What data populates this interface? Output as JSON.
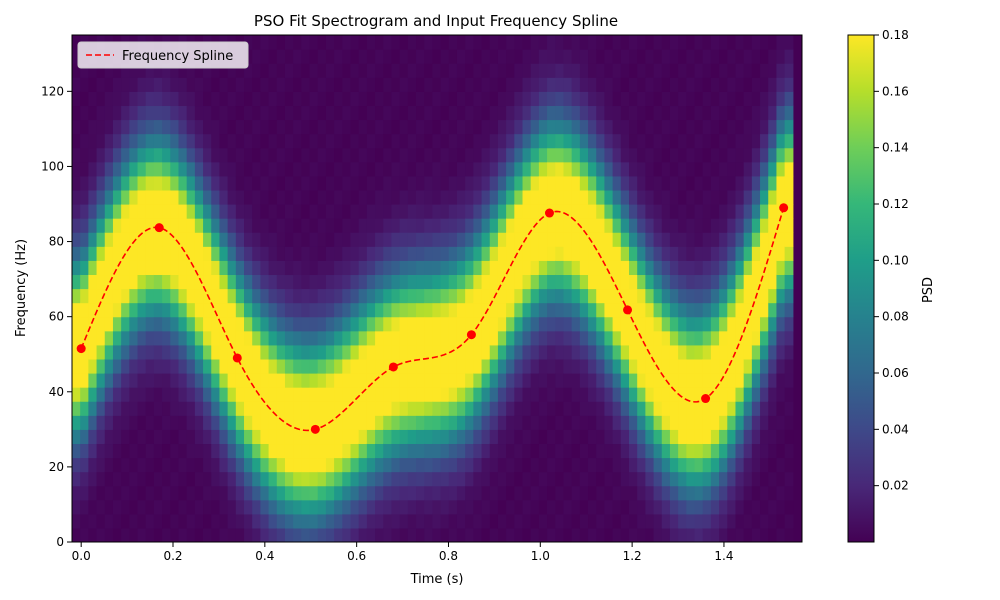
{
  "chart_data": {
    "type": "heatmap",
    "title": "PSO Fit Spectrogram and Input Frequency Spline",
    "xlabel": "Time (s)",
    "ylabel": "Frequency (Hz)",
    "xlim": [
      -0.02,
      1.57
    ],
    "ylim": [
      0,
      135
    ],
    "x_ticks": [
      0.0,
      0.2,
      0.4,
      0.6,
      0.8,
      1.0,
      1.2,
      1.4
    ],
    "x_tick_labels": [
      "0.0",
      "0.2",
      "0.4",
      "0.6",
      "0.8",
      "1.0",
      "1.2",
      "1.4"
    ],
    "y_ticks": [
      0,
      20,
      40,
      60,
      80,
      100,
      120
    ],
    "y_tick_labels": [
      "0",
      "20",
      "40",
      "60",
      "80",
      "100",
      "120"
    ],
    "legend": {
      "position": "top-left",
      "entries": [
        "Frequency Spline"
      ]
    },
    "colorbar": {
      "label": "PSD",
      "colormap": "viridis",
      "vmin": 0.0,
      "vmax": 0.18,
      "ticks": [
        0.02,
        0.04,
        0.06,
        0.08,
        0.1,
        0.12,
        0.14,
        0.16,
        0.18
      ],
      "tick_labels": [
        "0.02",
        "0.04",
        "0.06",
        "0.08",
        "0.10",
        "0.12",
        "0.14",
        "0.16",
        "0.18"
      ]
    },
    "spectrogram": {
      "time_range": [
        -0.02,
        1.55
      ],
      "time_bins": 88,
      "freq_range": [
        0,
        135
      ],
      "freq_bins": 36,
      "band_width_hz": 22,
      "peak_psd": 0.18
    },
    "series": [
      {
        "name": "Frequency Spline",
        "style": "dashed",
        "color": "#ff0000",
        "control_points": {
          "x": [
            0.0,
            0.17,
            0.34,
            0.51,
            0.68,
            0.85,
            1.02,
            1.19,
            1.36,
            1.53
          ],
          "y": [
            51.5,
            83.7,
            49.0,
            30.0,
            46.6,
            55.2,
            87.6,
            61.8,
            38.2,
            89.0
          ]
        }
      }
    ]
  },
  "colors": {
    "spline": "#ff0000",
    "marker": "#ff0000",
    "viridis": [
      "#440154",
      "#482878",
      "#3e4989",
      "#31688e",
      "#26828e",
      "#1f9e89",
      "#35b779",
      "#6ece58",
      "#b5de2b",
      "#fde725"
    ]
  }
}
